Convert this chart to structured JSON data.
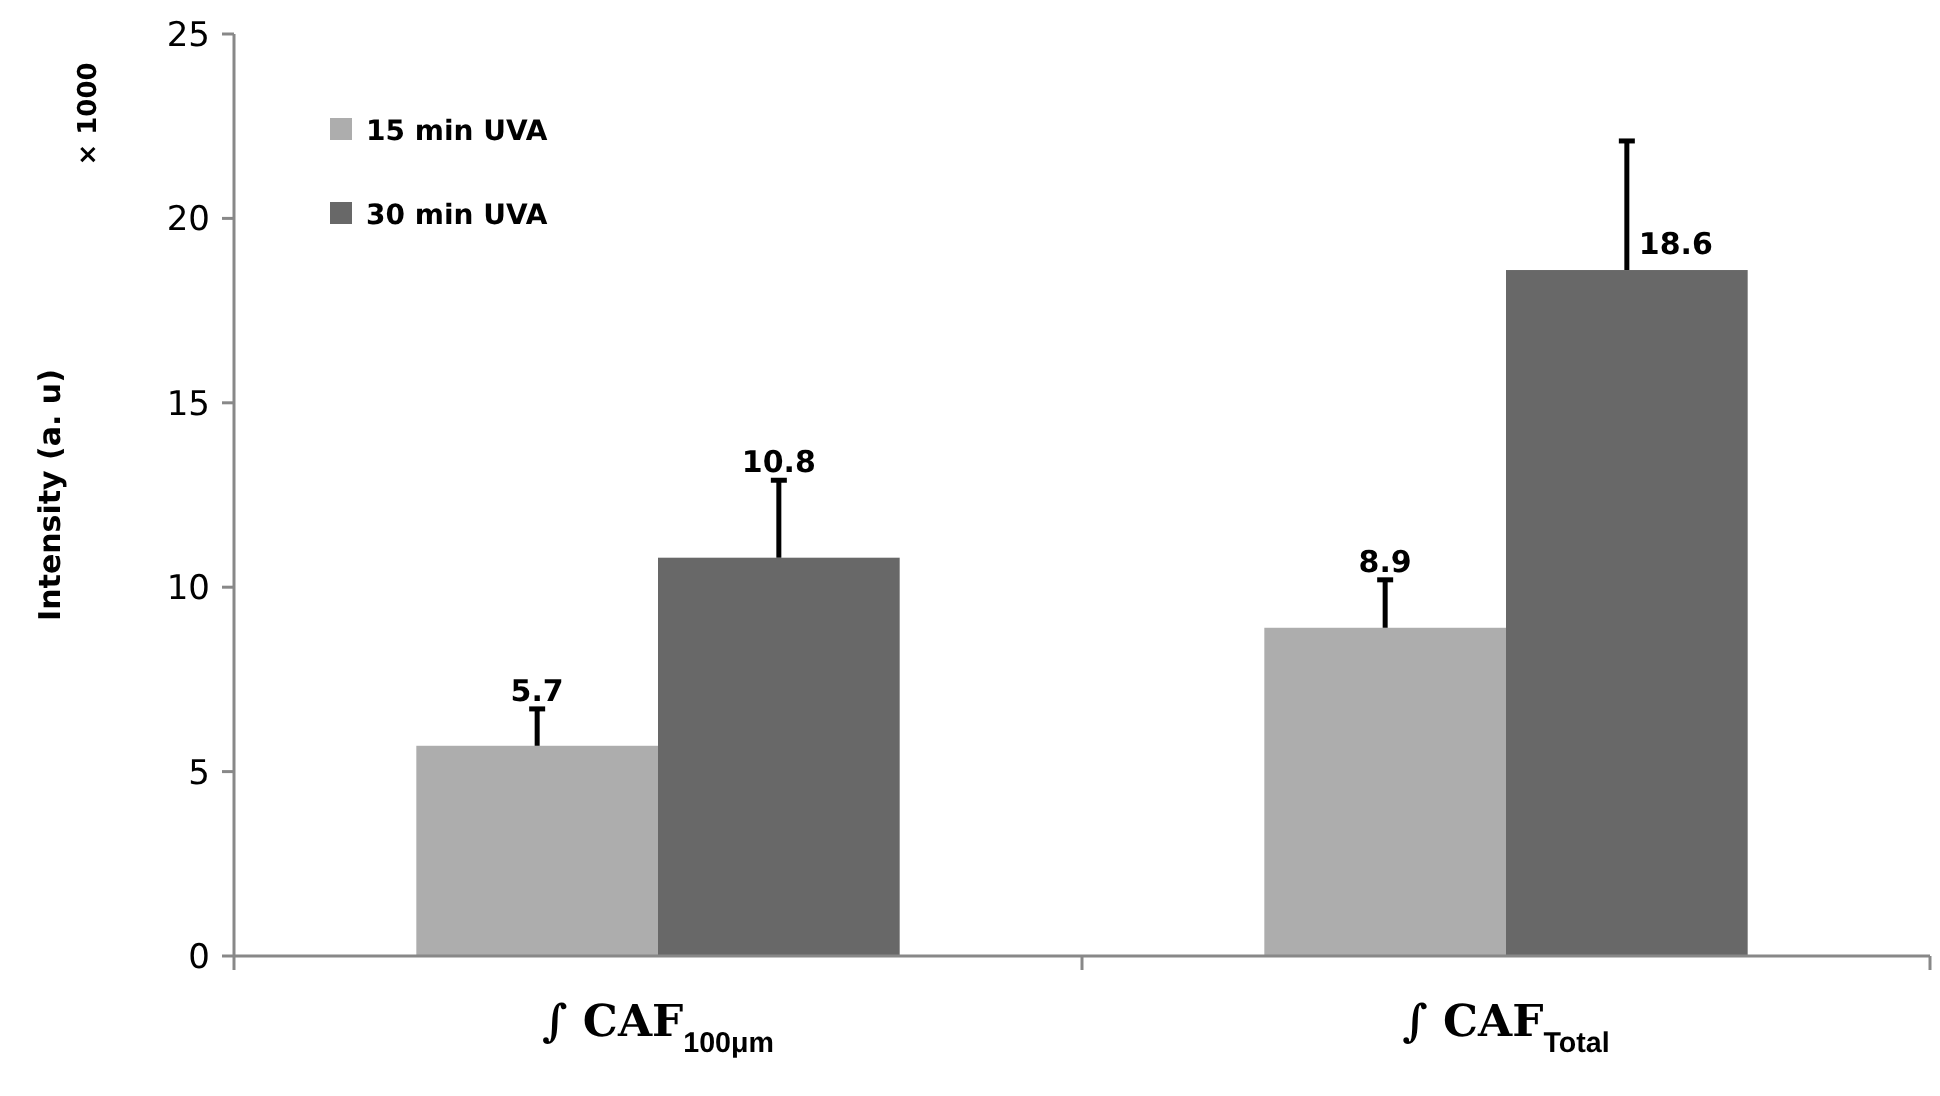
{
  "chart_data": {
    "type": "bar",
    "ylabel": "Intensity (a. u)",
    "annotations": [
      "× 1000"
    ],
    "categories": [
      "∫ CAF$_{100μm}$",
      "∫ CAF$_{Total}$"
    ],
    "series": [
      {
        "name": "15 min UVA",
        "color": "#adadad",
        "values": [
          5.7,
          8.9
        ],
        "errors": [
          [
            5.7,
            6.7
          ],
          [
            8.9,
            10.2
          ]
        ]
      },
      {
        "name": "30 min UVA",
        "color": "#686868",
        "values": [
          10.8,
          18.6
        ],
        "errors": [
          [
            10.8,
            12.9
          ],
          [
            18.6,
            22.1
          ]
        ]
      }
    ],
    "ylim": [
      0,
      25
    ],
    "yticks": [
      0,
      5,
      10,
      15,
      20,
      25
    ],
    "grid": false,
    "legend": "top left",
    "data_labels": true
  }
}
